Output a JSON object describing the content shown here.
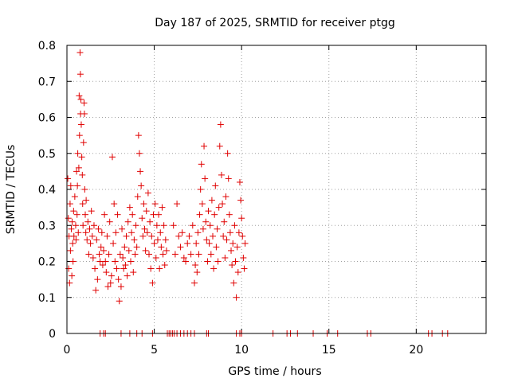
{
  "chart_data": {
    "type": "scatter",
    "title": "Day 187 of 2025, SRMTID for receiver ptgg",
    "xlabel": "GPS time / hours",
    "ylabel": "SRMTID / TECUs",
    "xlim": [
      0,
      24
    ],
    "ylim": [
      0,
      0.8
    ],
    "xticks": [
      0,
      5,
      10,
      15,
      20
    ],
    "xtick_labels": [
      "0",
      "5",
      "10",
      "15",
      "20"
    ],
    "yticks": [
      0,
      0.1,
      0.2,
      0.3,
      0.4,
      0.5,
      0.6,
      0.7,
      0.8
    ],
    "ytick_labels": [
      "0",
      "0.1",
      "0.2",
      "0.3",
      "0.4",
      "0.5",
      "0.6",
      "0.7",
      "0.8"
    ],
    "grid": true,
    "marker": "+",
    "series": [
      {
        "name": "SRMTID",
        "color": "#e00000",
        "points": [
          [
            0.05,
            0.43
          ],
          [
            0.08,
            0.32
          ],
          [
            0.1,
            0.18
          ],
          [
            0.12,
            0.27
          ],
          [
            0.15,
            0.14
          ],
          [
            0.18,
            0.36
          ],
          [
            0.2,
            0.23
          ],
          [
            0.22,
            0.41
          ],
          [
            0.25,
            0.29
          ],
          [
            0.28,
            0.16
          ],
          [
            0.3,
            0.31
          ],
          [
            0.33,
            0.25
          ],
          [
            0.35,
            0.2
          ],
          [
            0.38,
            0.34
          ],
          [
            0.4,
            0.27
          ],
          [
            0.45,
            0.38
          ],
          [
            0.5,
            0.3
          ],
          [
            0.52,
            0.26
          ],
          [
            0.55,
            0.45
          ],
          [
            0.58,
            0.33
          ],
          [
            0.6,
            0.41
          ],
          [
            0.62,
            0.5
          ],
          [
            0.65,
            0.28
          ],
          [
            0.68,
            0.46
          ],
          [
            0.7,
            0.66
          ],
          [
            0.72,
            0.55
          ],
          [
            0.75,
            0.78
          ],
          [
            0.77,
            0.72
          ],
          [
            0.78,
            0.61
          ],
          [
            0.8,
            0.65
          ],
          [
            0.82,
            0.58
          ],
          [
            0.85,
            0.49
          ],
          [
            0.88,
            0.44
          ],
          [
            0.9,
            0.36
          ],
          [
            0.92,
            0.3
          ],
          [
            0.95,
            0.53
          ],
          [
            0.98,
            0.64
          ],
          [
            1.0,
            0.61
          ],
          [
            1.02,
            0.4
          ],
          [
            1.05,
            0.33
          ],
          [
            1.08,
            0.28
          ],
          [
            1.1,
            0.37
          ],
          [
            1.15,
            0.26
          ],
          [
            1.2,
            0.31
          ],
          [
            1.25,
            0.22
          ],
          [
            1.3,
            0.29
          ],
          [
            1.35,
            0.25
          ],
          [
            1.4,
            0.34
          ],
          [
            1.45,
            0.27
          ],
          [
            1.5,
            0.21
          ],
          [
            1.55,
            0.3
          ],
          [
            1.6,
            0.18
          ],
          [
            1.65,
            0.12
          ],
          [
            1.7,
            0.26
          ],
          [
            1.75,
            0.15
          ],
          [
            1.8,
            0.29
          ],
          [
            1.85,
            0.22
          ],
          [
            1.9,
            0.2
          ],
          [
            1.95,
            0.24
          ],
          [
            2.0,
            0.28
          ],
          [
            2.05,
            0.19
          ],
          [
            2.1,
            0.23
          ],
          [
            2.15,
            0.33
          ],
          [
            2.2,
            0.2
          ],
          [
            2.25,
            0.17
          ],
          [
            2.3,
            0.27
          ],
          [
            2.35,
            0.13
          ],
          [
            2.4,
            0.22
          ],
          [
            2.45,
            0.31
          ],
          [
            2.5,
            0.14
          ],
          [
            2.55,
            0.16
          ],
          [
            2.6,
            0.49
          ],
          [
            2.65,
            0.25
          ],
          [
            2.7,
            0.36
          ],
          [
            2.75,
            0.2
          ],
          [
            2.8,
            0.28
          ],
          [
            2.85,
            0.18
          ],
          [
            2.9,
            0.33
          ],
          [
            2.95,
            0.15
          ],
          [
            3.0,
            0.09
          ],
          [
            3.05,
            0.22
          ],
          [
            3.1,
            0.13
          ],
          [
            3.15,
            0.29
          ],
          [
            3.2,
            0.21
          ],
          [
            3.25,
            0.18
          ],
          [
            3.3,
            0.24
          ],
          [
            3.35,
            0.19
          ],
          [
            3.4,
            0.27
          ],
          [
            3.45,
            0.16
          ],
          [
            3.5,
            0.31
          ],
          [
            3.55,
            0.23
          ],
          [
            3.6,
            0.35
          ],
          [
            3.65,
            0.2
          ],
          [
            3.7,
            0.28
          ],
          [
            3.75,
            0.33
          ],
          [
            3.8,
            0.17
          ],
          [
            3.85,
            0.26
          ],
          [
            3.9,
            0.22
          ],
          [
            3.95,
            0.3
          ],
          [
            4.0,
            0.24
          ],
          [
            4.05,
            0.38
          ],
          [
            4.1,
            0.55
          ],
          [
            4.15,
            0.5
          ],
          [
            4.2,
            0.45
          ],
          [
            4.25,
            0.41
          ],
          [
            4.3,
            0.32
          ],
          [
            4.35,
            0.27
          ],
          [
            4.4,
            0.36
          ],
          [
            4.45,
            0.29
          ],
          [
            4.5,
            0.23
          ],
          [
            4.55,
            0.34
          ],
          [
            4.6,
            0.28
          ],
          [
            4.65,
            0.39
          ],
          [
            4.7,
            0.22
          ],
          [
            4.75,
            0.31
          ],
          [
            4.8,
            0.18
          ],
          [
            4.85,
            0.27
          ],
          [
            4.9,
            0.14
          ],
          [
            4.95,
            0.33
          ],
          [
            5.0,
            0.25
          ],
          [
            5.05,
            0.36
          ],
          [
            5.1,
            0.21
          ],
          [
            5.15,
            0.3
          ],
          [
            5.2,
            0.26
          ],
          [
            5.25,
            0.33
          ],
          [
            5.3,
            0.18
          ],
          [
            5.35,
            0.28
          ],
          [
            5.4,
            0.24
          ],
          [
            5.45,
            0.35
          ],
          [
            5.5,
            0.22
          ],
          [
            5.55,
            0.3
          ],
          [
            5.6,
            0.19
          ],
          [
            5.65,
            0.26
          ],
          [
            5.7,
            0.23
          ],
          [
            6.1,
            0.3
          ],
          [
            6.2,
            0.22
          ],
          [
            6.3,
            0.36
          ],
          [
            6.4,
            0.27
          ],
          [
            6.5,
            0.24
          ],
          [
            6.6,
            0.28
          ],
          [
            6.7,
            0.21
          ],
          [
            6.8,
            0.2
          ],
          [
            6.9,
            0.25
          ],
          [
            7.0,
            0.27
          ],
          [
            7.1,
            0.22
          ],
          [
            7.2,
            0.3
          ],
          [
            7.3,
            0.14
          ],
          [
            7.35,
            0.19
          ],
          [
            7.4,
            0.25
          ],
          [
            7.45,
            0.17
          ],
          [
            7.5,
            0.28
          ],
          [
            7.55,
            0.22
          ],
          [
            7.6,
            0.33
          ],
          [
            7.65,
            0.4
          ],
          [
            7.7,
            0.47
          ],
          [
            7.75,
            0.36
          ],
          [
            7.8,
            0.29
          ],
          [
            7.85,
            0.52
          ],
          [
            7.9,
            0.43
          ],
          [
            7.95,
            0.31
          ],
          [
            8.0,
            0.26
          ],
          [
            8.05,
            0.2
          ],
          [
            8.1,
            0.34
          ],
          [
            8.15,
            0.25
          ],
          [
            8.2,
            0.3
          ],
          [
            8.25,
            0.22
          ],
          [
            8.3,
            0.37
          ],
          [
            8.35,
            0.27
          ],
          [
            8.4,
            0.18
          ],
          [
            8.45,
            0.33
          ],
          [
            8.5,
            0.41
          ],
          [
            8.55,
            0.24
          ],
          [
            8.6,
            0.29
          ],
          [
            8.65,
            0.2
          ],
          [
            8.7,
            0.35
          ],
          [
            8.75,
            0.52
          ],
          [
            8.8,
            0.58
          ],
          [
            8.85,
            0.44
          ],
          [
            8.9,
            0.36
          ],
          [
            8.95,
            0.27
          ],
          [
            9.0,
            0.31
          ],
          [
            9.05,
            0.21
          ],
          [
            9.1,
            0.38
          ],
          [
            9.15,
            0.26
          ],
          [
            9.2,
            0.5
          ],
          [
            9.25,
            0.43
          ],
          [
            9.3,
            0.33
          ],
          [
            9.35,
            0.28
          ],
          [
            9.4,
            0.23
          ],
          [
            9.45,
            0.19
          ],
          [
            9.5,
            0.25
          ],
          [
            9.55,
            0.14
          ],
          [
            9.6,
            0.3
          ],
          [
            9.65,
            0.2
          ],
          [
            9.7,
            0.1
          ],
          [
            9.75,
            0.24
          ],
          [
            9.8,
            0.17
          ],
          [
            9.85,
            0.28
          ],
          [
            9.9,
            0.42
          ],
          [
            9.95,
            0.37
          ],
          [
            10.0,
            0.32
          ],
          [
            10.05,
            0.27
          ],
          [
            10.1,
            0.21
          ],
          [
            10.15,
            0.18
          ],
          [
            10.2,
            0.25
          ],
          [
            1.9,
            0
          ],
          [
            2.1,
            0
          ],
          [
            2.2,
            0
          ],
          [
            3.1,
            0
          ],
          [
            3.6,
            0
          ],
          [
            4.0,
            0
          ],
          [
            4.3,
            0
          ],
          [
            4.9,
            0
          ],
          [
            5.75,
            0
          ],
          [
            5.85,
            0
          ],
          [
            5.95,
            0
          ],
          [
            6.05,
            0
          ],
          [
            6.15,
            0
          ],
          [
            6.3,
            0
          ],
          [
            6.5,
            0
          ],
          [
            6.7,
            0
          ],
          [
            6.9,
            0
          ],
          [
            7.1,
            0
          ],
          [
            7.3,
            0
          ],
          [
            8.0,
            0
          ],
          [
            8.1,
            0
          ],
          [
            9.7,
            0
          ],
          [
            9.9,
            0
          ],
          [
            10.0,
            0
          ],
          [
            11.8,
            0
          ],
          [
            12.6,
            0
          ],
          [
            12.8,
            0
          ],
          [
            13.2,
            0
          ],
          [
            14.1,
            0
          ],
          [
            14.9,
            0
          ],
          [
            15.5,
            0
          ],
          [
            17.2,
            0
          ],
          [
            17.4,
            0
          ],
          [
            20.7,
            0
          ],
          [
            20.9,
            0
          ],
          [
            21.5,
            0
          ],
          [
            21.8,
            0
          ]
        ]
      }
    ]
  }
}
